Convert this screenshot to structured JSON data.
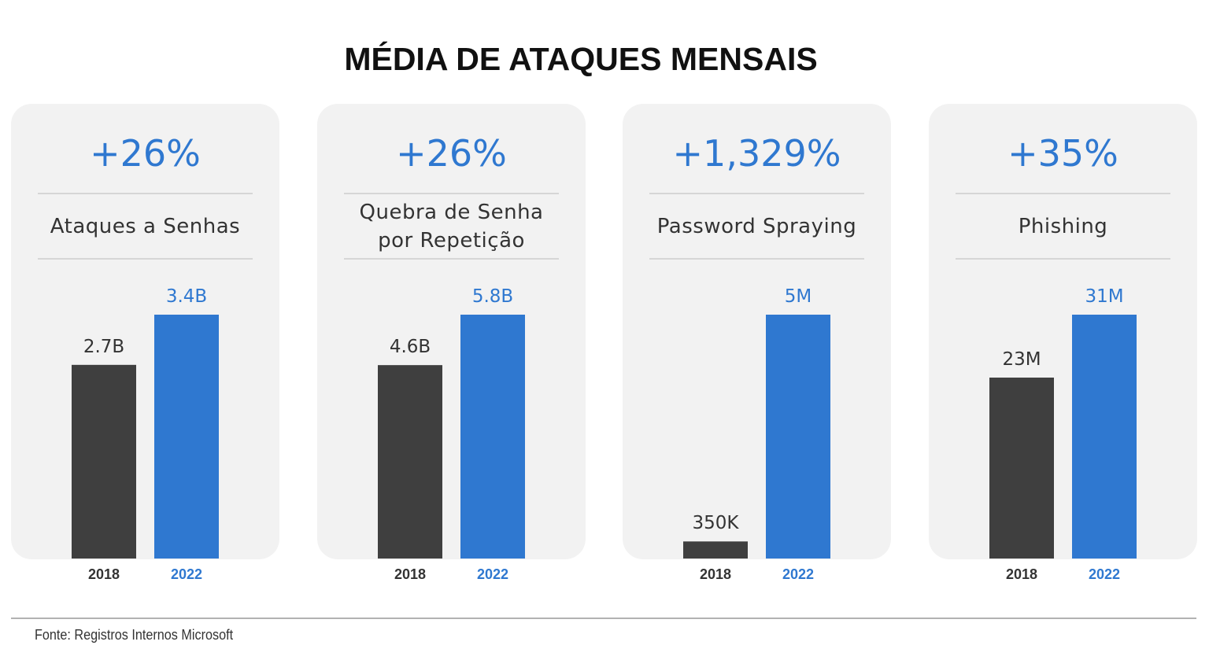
{
  "title": "MÉDIA DE ATAQUES MENSAIS",
  "source": "Fonte: Registros Internos Microsoft",
  "chart_data": [
    {
      "type": "bar",
      "headline": "+26%",
      "title": "Ataques a Senhas",
      "categories": [
        "2018",
        "2022"
      ],
      "values": [
        2700000000,
        3400000000
      ],
      "value_labels": [
        "2.7B",
        "3.4B"
      ],
      "colors": [
        "#3f3f3f",
        "#2f78d0"
      ]
    },
    {
      "type": "bar",
      "headline": "+26%",
      "title": "Quebra de Senha por Repetição",
      "categories": [
        "2018",
        "2022"
      ],
      "values": [
        4600000000,
        5800000000
      ],
      "value_labels": [
        "4.6B",
        "5.8B"
      ],
      "colors": [
        "#3f3f3f",
        "#2f78d0"
      ]
    },
    {
      "type": "bar",
      "headline": "+1,329%",
      "title": "Password Spraying",
      "categories": [
        "2018",
        "2022"
      ],
      "values": [
        350000,
        5000000
      ],
      "value_labels": [
        "350K",
        "5M"
      ],
      "colors": [
        "#3f3f3f",
        "#2f78d0"
      ]
    },
    {
      "type": "bar",
      "headline": "+35%",
      "title": "Phishing",
      "categories": [
        "2018",
        "2022"
      ],
      "values": [
        23000000,
        31000000
      ],
      "value_labels": [
        "23M",
        "31M"
      ],
      "colors": [
        "#3f3f3f",
        "#2f78d0"
      ]
    }
  ]
}
